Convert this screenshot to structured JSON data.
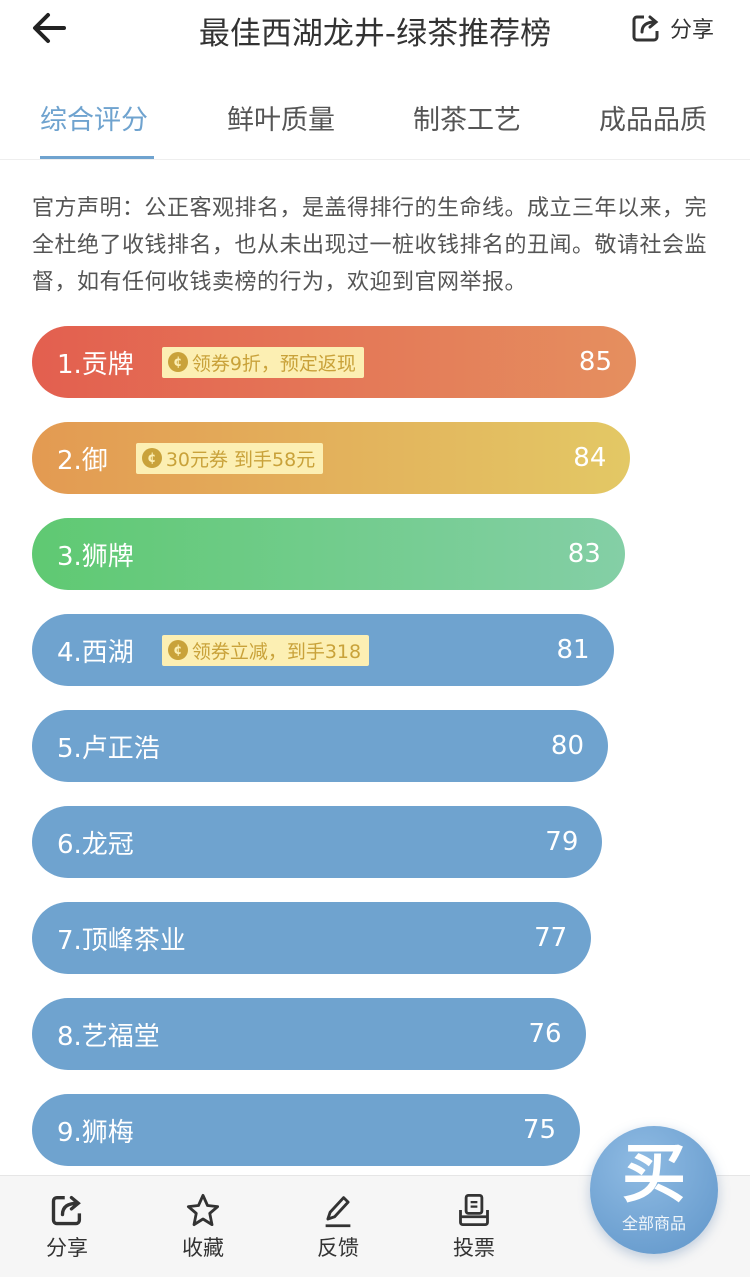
{
  "header": {
    "title": "最佳西湖龙井-绿茶推荐榜",
    "share_label": "分享"
  },
  "tabs": [
    {
      "label": "综合评分",
      "active": true
    },
    {
      "label": "鲜叶质量"
    },
    {
      "label": "制茶工艺"
    },
    {
      "label": "成品品质"
    }
  ],
  "notice": "官方声明：公正客观排名，是盖得排行的生命线。成立三年以来，完全杜绝了收钱排名，也从未出现过一桩收钱排名的丑闻。敬请社会监督，如有任何收钱卖榜的行为，欢迎到官网举报。",
  "ranking": [
    {
      "name": "1.贡牌",
      "score": 85,
      "badge": "领券9折，预定返现",
      "colors": [
        "#e35f4f",
        "#e58f5f"
      ]
    },
    {
      "name": "2.御",
      "score": 84,
      "badge": "30元券 到手58元",
      "colors": [
        "#e39a52",
        "#e3c865"
      ]
    },
    {
      "name": "3.狮牌",
      "score": 83,
      "colors": [
        "#5fc972",
        "#84cfa6"
      ]
    },
    {
      "name": "4.西湖",
      "score": 81,
      "badge": "领券立减，到手318",
      "colors": [
        "#6fa3cf",
        "#6fa3cf"
      ]
    },
    {
      "name": "5.卢正浩",
      "score": 80,
      "colors": [
        "#6fa3cf",
        "#6fa3cf"
      ]
    },
    {
      "name": "6.龙冠",
      "score": 79,
      "colors": [
        "#6fa3cf",
        "#6fa3cf"
      ]
    },
    {
      "name": "7.顶峰茶业",
      "score": 77,
      "colors": [
        "#6fa3cf",
        "#6fa3cf"
      ]
    },
    {
      "name": "8.艺福堂",
      "score": 76,
      "colors": [
        "#6fa3cf",
        "#6fa3cf"
      ]
    },
    {
      "name": "9.狮梅",
      "score": 75,
      "colors": [
        "#6fa3cf",
        "#6fa3cf"
      ]
    }
  ],
  "bottom_nav": [
    {
      "label": "分享",
      "icon": "share-icon"
    },
    {
      "label": "收藏",
      "icon": "star-icon"
    },
    {
      "label": "反馈",
      "icon": "pencil-icon"
    },
    {
      "label": "投票",
      "icon": "ballot-icon"
    }
  ],
  "fab": {
    "glyph": "买",
    "label": "全部商品"
  }
}
